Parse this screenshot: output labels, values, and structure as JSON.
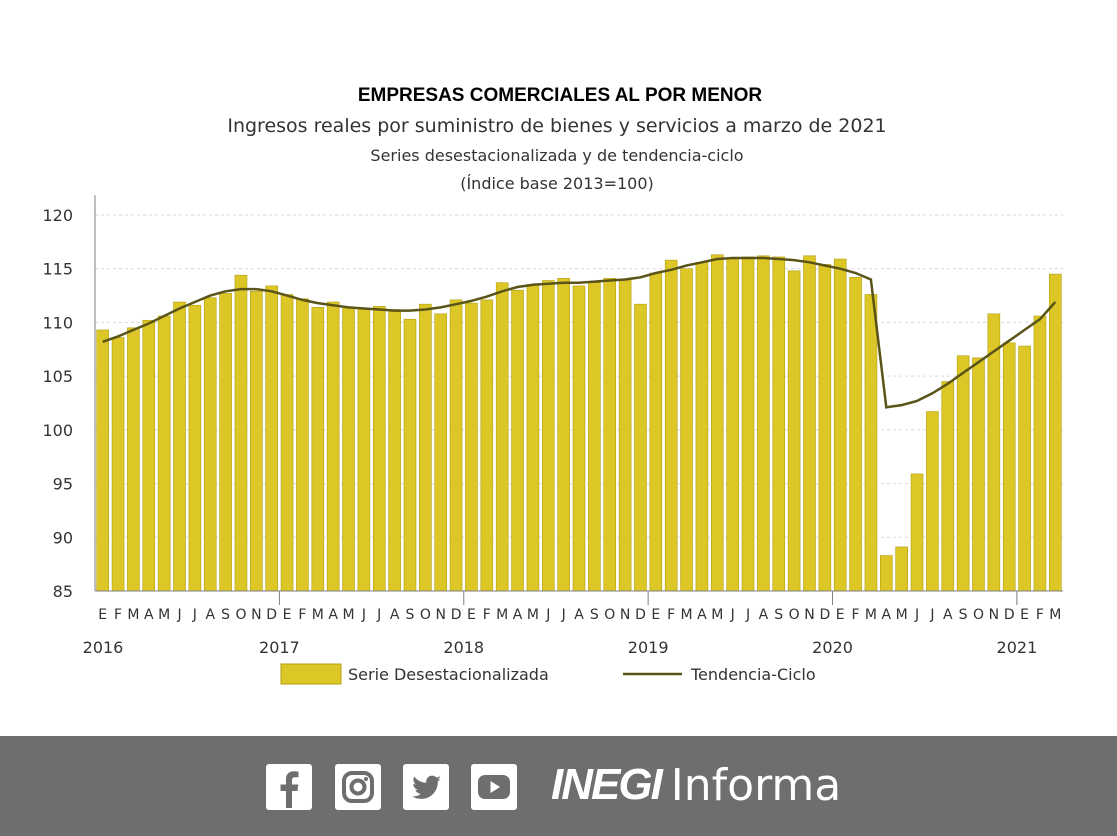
{
  "chart_data": {
    "type": "bar+line",
    "title": "EMPRESAS COMERCIALES AL POR MENOR",
    "subtitle": "Ingresos reales por suministro de bienes y servicios a marzo de 2021",
    "subtitle2": "Series desestacionalizada y de tendencia-ciclo",
    "subtitle3": "(Índice base 2013=100)",
    "ylim": [
      85,
      120
    ],
    "yticks": [
      85,
      90,
      95,
      100,
      105,
      110,
      115,
      120
    ],
    "month_letters": [
      "E",
      "F",
      "M",
      "A",
      "M",
      "J",
      "J",
      "A",
      "S",
      "O",
      "N",
      "D"
    ],
    "year_labels": [
      {
        "index": 0,
        "label": "2016"
      },
      {
        "index": 12,
        "label": "2017"
      },
      {
        "index": 24,
        "label": "2018"
      },
      {
        "index": 36,
        "label": "2019"
      },
      {
        "index": 48,
        "label": "2020"
      },
      {
        "index": 60,
        "label": "2021"
      }
    ],
    "start": "2016-01",
    "series": [
      {
        "name": "Serie Desestacionalizada",
        "type": "bar",
        "values": [
          109.3,
          108.6,
          109.5,
          110.2,
          110.6,
          111.9,
          111.6,
          112.3,
          112.7,
          114.4,
          112.9,
          113.4,
          112.6,
          112.2,
          111.4,
          111.9,
          111.4,
          111.3,
          111.5,
          111.2,
          110.3,
          111.7,
          110.8,
          112.1,
          111.8,
          112.1,
          113.7,
          113.0,
          113.5,
          113.9,
          114.1,
          113.4,
          113.7,
          114.1,
          114.0,
          111.7,
          114.6,
          115.8,
          115.0,
          115.6,
          116.3,
          115.9,
          116.1,
          116.2,
          116.1,
          114.8,
          116.2,
          115.4,
          115.9,
          114.2,
          112.6,
          88.3,
          89.1,
          95.9,
          101.7,
          104.5,
          106.9,
          106.7,
          110.8,
          108.1,
          107.8,
          110.6,
          114.5
        ]
      },
      {
        "name": "Tendencia-Ciclo",
        "type": "line",
        "values": [
          108.2,
          108.7,
          109.3,
          109.9,
          110.6,
          111.3,
          111.9,
          112.5,
          112.9,
          113.1,
          113.1,
          112.9,
          112.5,
          112.1,
          111.8,
          111.6,
          111.4,
          111.3,
          111.2,
          111.1,
          111.1,
          111.2,
          111.4,
          111.7,
          112.0,
          112.4,
          112.9,
          113.3,
          113.5,
          113.6,
          113.7,
          113.7,
          113.8,
          113.9,
          114.0,
          114.2,
          114.6,
          114.9,
          115.3,
          115.6,
          115.9,
          116.0,
          116.0,
          116.0,
          115.9,
          115.8,
          115.6,
          115.3,
          115.0,
          114.6,
          114.0,
          102.1,
          102.3,
          102.7,
          103.4,
          104.3,
          105.3,
          106.3,
          107.3,
          108.3,
          109.3,
          110.3,
          111.9
        ]
      }
    ],
    "colors": {
      "bar": "#dcc727",
      "bar_stroke": "#b39f12",
      "line": "#5a5418",
      "grid": "#d9d9d9",
      "footer": "#6d6e70"
    }
  },
  "legend": {
    "bar_label": "Serie Desestacionalizada",
    "line_label": "Tendencia-Ciclo"
  },
  "footer": {
    "brand_bold": "INEGI",
    "brand_light": "Informa",
    "icons": [
      "facebook-icon",
      "instagram-icon",
      "twitter-icon",
      "youtube-icon"
    ]
  }
}
